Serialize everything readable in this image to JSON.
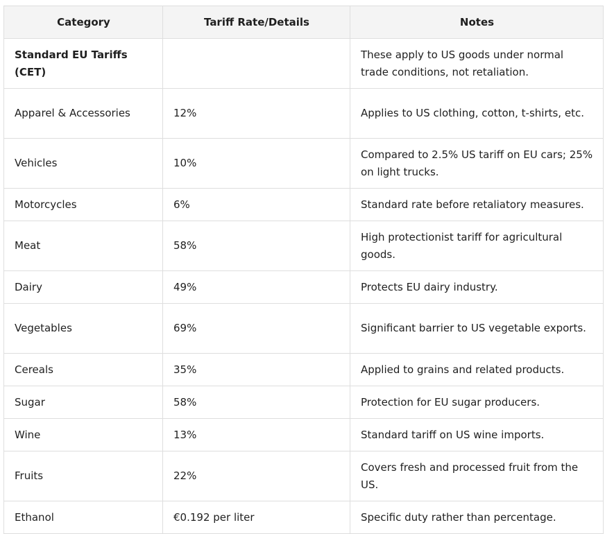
{
  "table": {
    "headers": [
      "Category",
      "Tariff Rate/Details",
      "Notes"
    ],
    "rows": [
      [
        "Standard EU Tariffs (CET)",
        null,
        "These apply to US goods under normal trade conditions, not retaliation."
      ],
      [
        "Apparel & Accessories",
        "12%",
        "Applies to US clothing, cotton, t-shirts, etc."
      ],
      [
        "Vehicles",
        "10%",
        "Compared to 2.5% US tariff on EU cars; 25% on light trucks."
      ],
      [
        "Motorcycles",
        "6%",
        "Standard rate before retaliatory measures."
      ],
      [
        "Meat",
        "58%",
        "High protectionist tariff for agricultural goods."
      ],
      [
        "Dairy",
        "49%",
        "Protects EU dairy industry."
      ],
      [
        "Vegetables",
        "69%",
        "Significant barrier to US vegetable exports."
      ],
      [
        "Cereals",
        "35%",
        "Applied to grains and related products."
      ],
      [
        "Sugar",
        "58%",
        "Protection for EU sugar producers."
      ],
      [
        "Wine",
        "13%",
        "Standard tariff on US wine imports."
      ],
      [
        "Fruits",
        "22%",
        "Covers fresh and processed fruit from the US."
      ],
      [
        "Ethanol",
        "€0.192 per liter",
        "Specific duty rather than percentage."
      ]
    ]
  }
}
